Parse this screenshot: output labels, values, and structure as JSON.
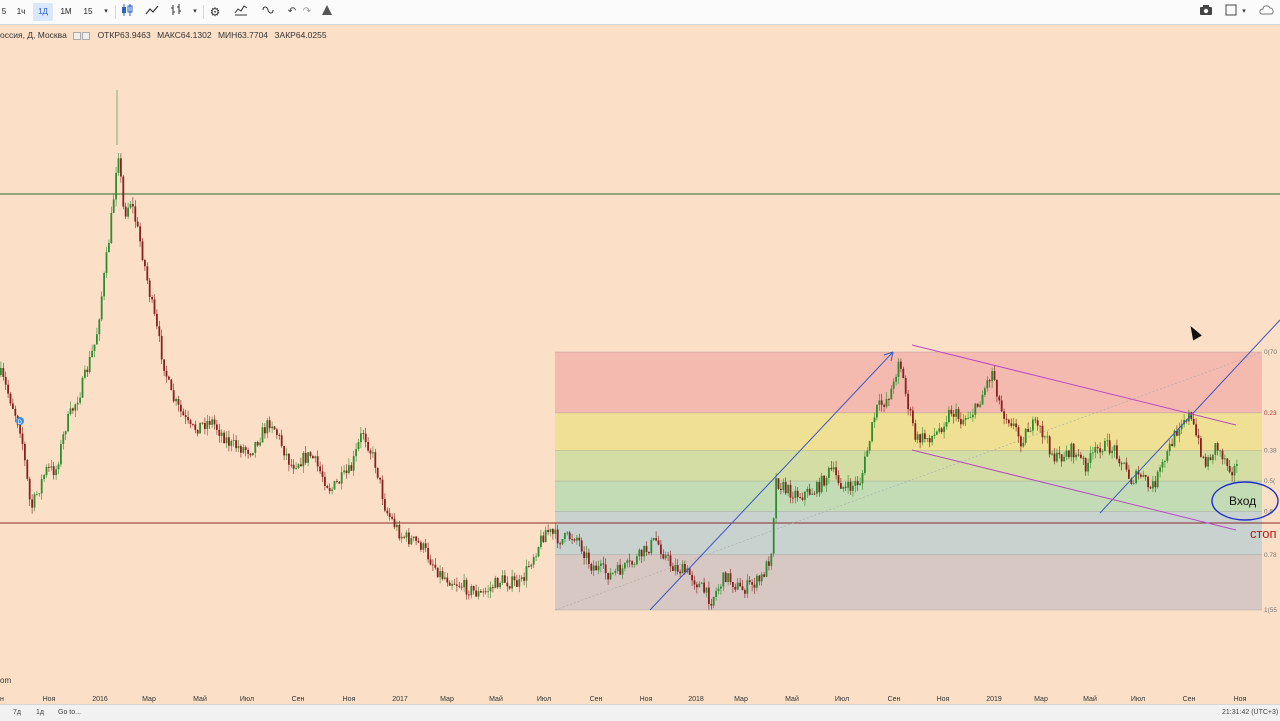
{
  "toolbar": {
    "intervals": [
      "5",
      "1ч",
      "1Д",
      "1М",
      "15"
    ],
    "active_interval": "1Д",
    "left_icons": [
      "interval-dropdown-icon",
      "candles-icon",
      "line-chart-icon",
      "bars-icon",
      "chart-type-dropdown-icon",
      "settings-gear-icon",
      "indicators-icon",
      "compare-icon",
      "undo-icon",
      "redo-icon",
      "alert-icon"
    ],
    "right_icons": [
      "camera-icon",
      "layout-icon",
      "layout-dropdown-icon",
      "cloud-icon"
    ]
  },
  "legend": {
    "symbol": "оссия, Д, Москва",
    "open_label": "ОТКР",
    "open": "63.9463",
    "high_label": "МАКС",
    "high": "64.1302",
    "low_label": "МИН",
    "low": "63.7704",
    "close_label": "ЗАКР",
    "close": "64.0255"
  },
  "chart_data": {
    "type": "candlestick",
    "x_axis_labels": [
      "Ноя",
      "2016",
      "Мар",
      "Май",
      "Июл",
      "Сен",
      "Ноя",
      "2017",
      "Мар",
      "Май",
      "Июл",
      "Сен",
      "Ноя",
      "2018",
      "Мар",
      "Май",
      "Июл",
      "Сен",
      "Ноя",
      "2019",
      "Мар",
      "Май",
      "Июл",
      "Сен",
      "Ноя"
    ],
    "x_axis_left_fragment": "н",
    "fib_levels": [
      {
        "label": "0(70",
        "ratio": 0
      },
      {
        "label": "0.23",
        "ratio": 0.236
      },
      {
        "label": "0.38",
        "ratio": 0.382
      },
      {
        "label": "0.5(",
        "ratio": 0.5
      },
      {
        "label": "0.6",
        "ratio": 0.618
      },
      {
        "label": "0.78",
        "ratio": 0.786
      },
      {
        "label": "1(55",
        "ratio": 1
      }
    ],
    "fib_colors": [
      "#ef9a9a",
      "#e6e06a",
      "#b5dc87",
      "#96d8a8",
      "#9ec9d6",
      "#b9b4c0"
    ],
    "annotations": {
      "entry_label": "Вход",
      "stop_label": "стоп"
    },
    "colors": {
      "up": "#2e8b2e",
      "down": "#8b1e1e",
      "trend": "#3b57c4",
      "channel": "#b84cc4",
      "resistance": "#2f6b2f",
      "support": "#8b2a2a"
    }
  },
  "bottombar": {
    "left_fragment": "om",
    "buttons": [
      "7д",
      "1д"
    ],
    "goto": "Go to...",
    "time": "21:31:42 (UTC+3)"
  }
}
